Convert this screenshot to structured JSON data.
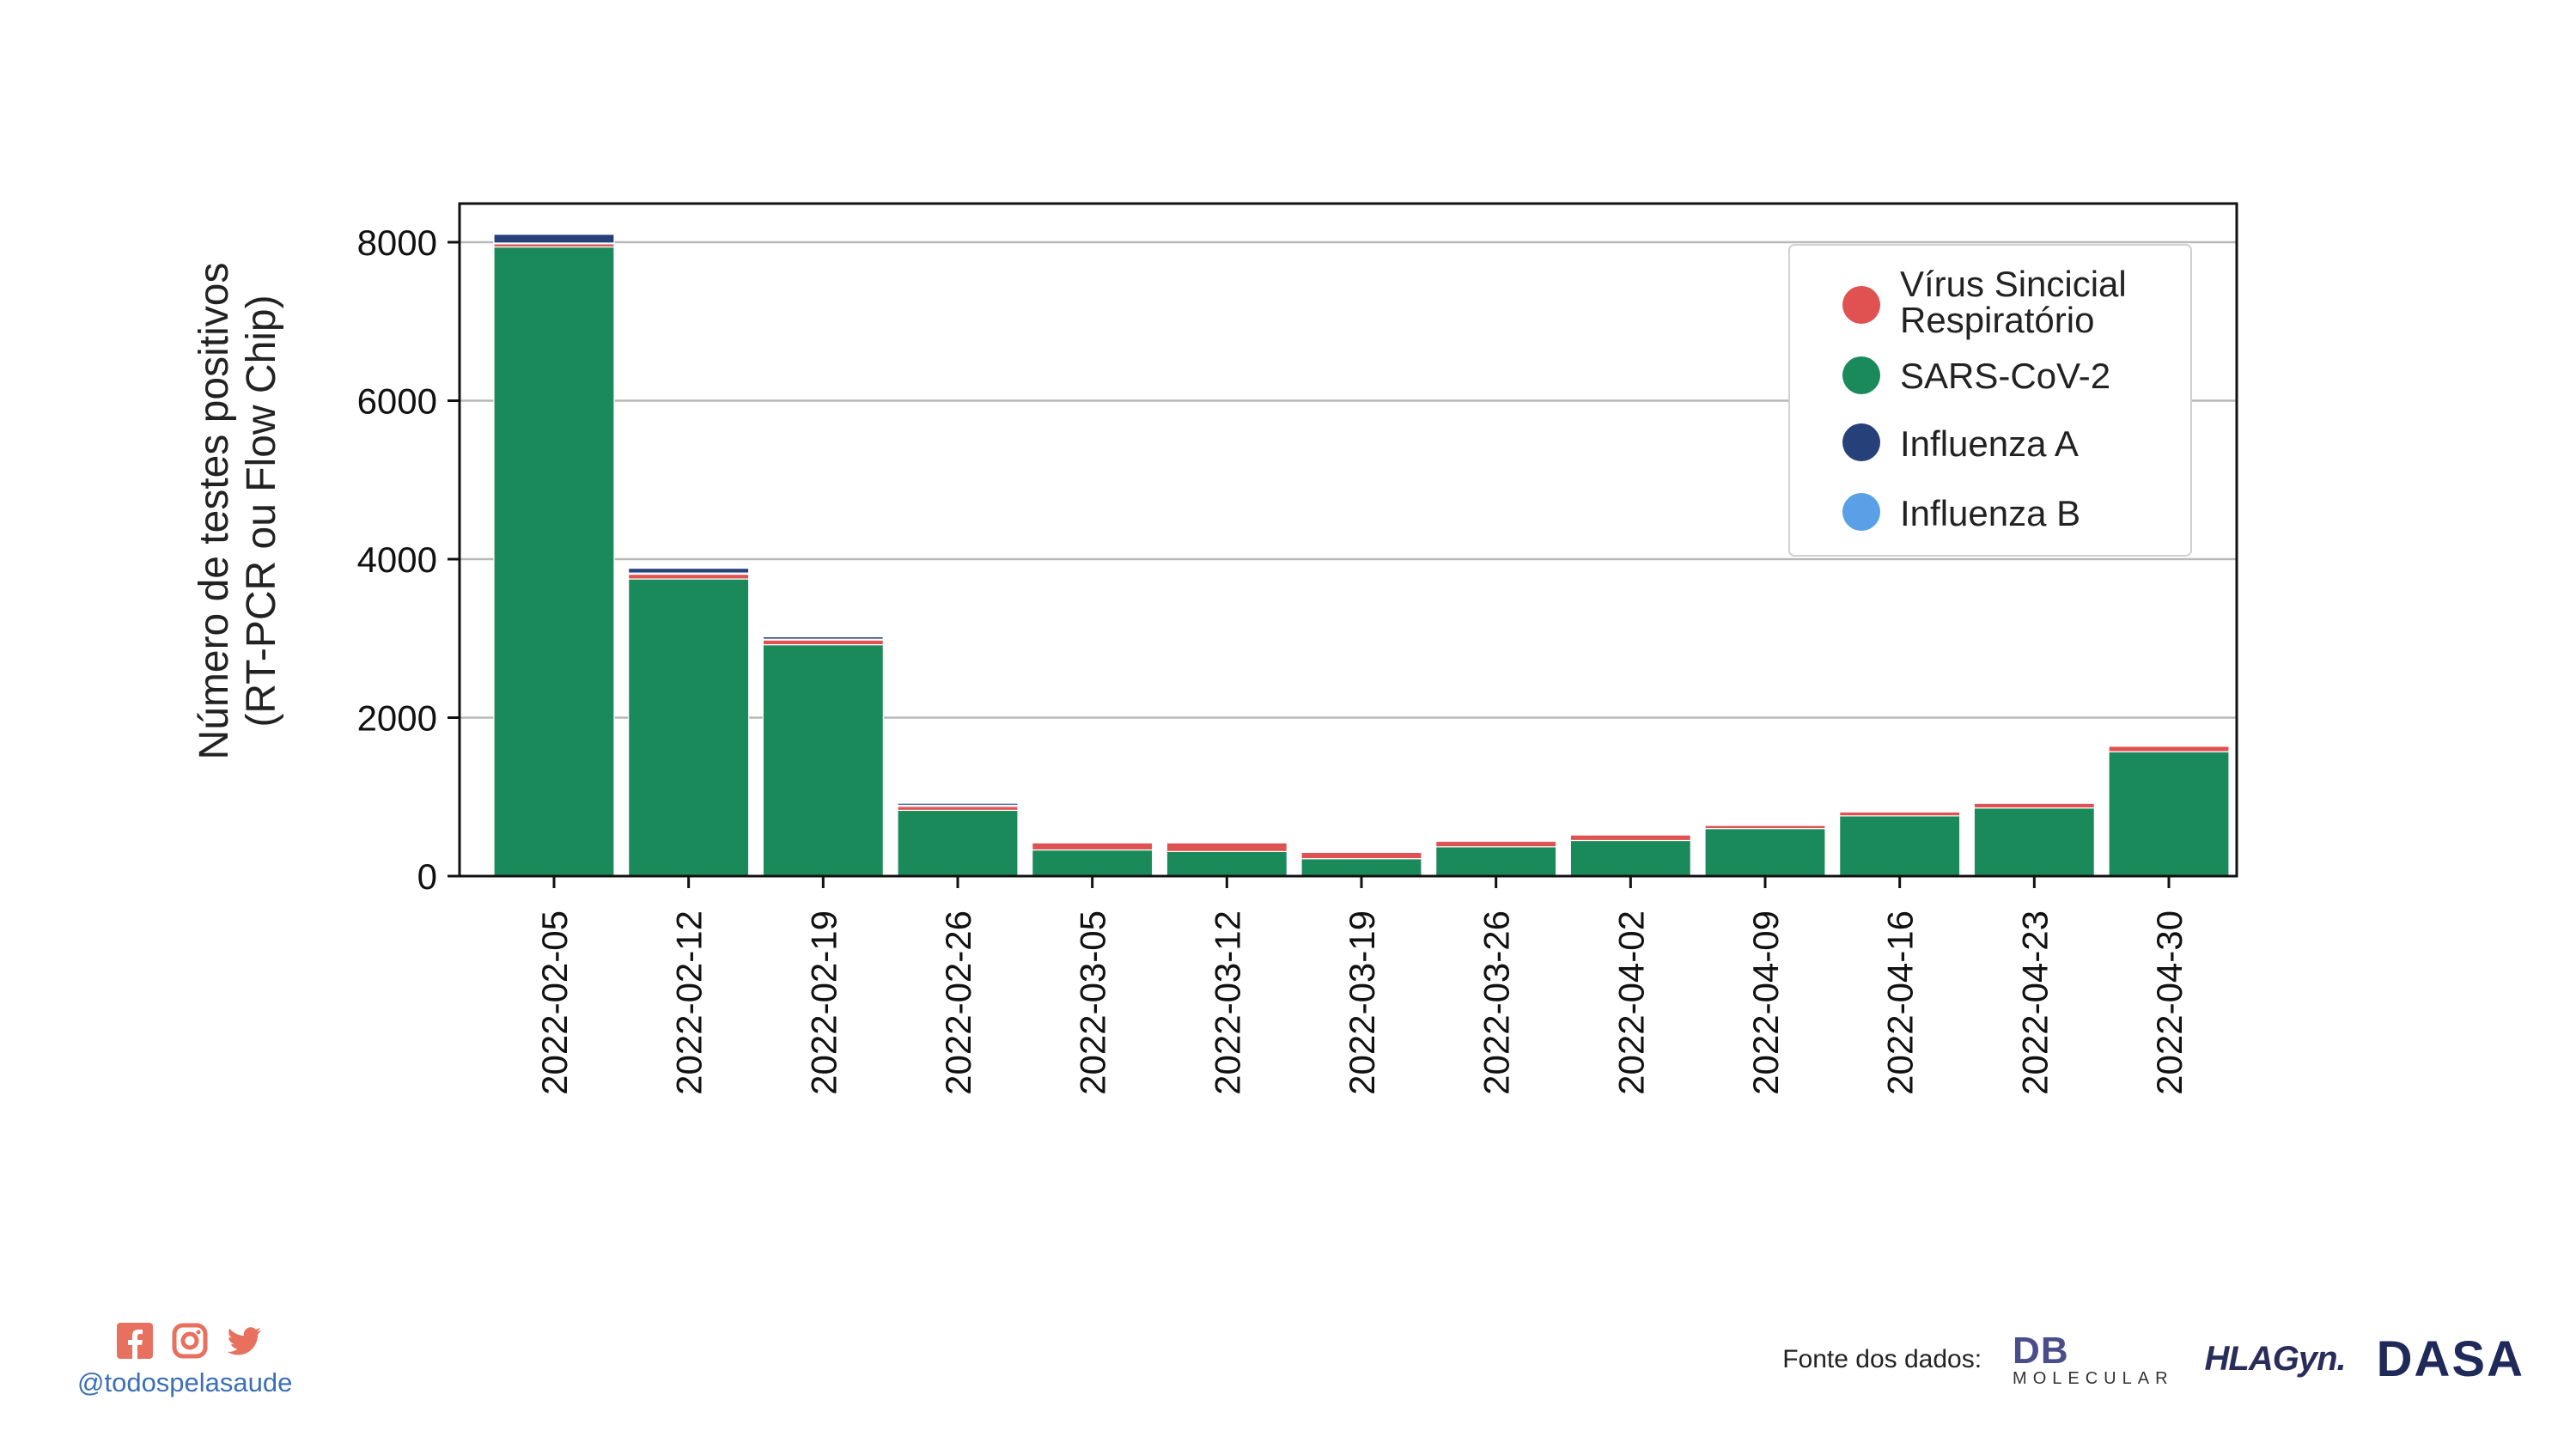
{
  "chart_data": {
    "type": "bar",
    "stacked": true,
    "ylabel": "Número de testes positivos\n(RT-PCR ou Flow Chip)",
    "ylim": [
      0,
      8500
    ],
    "yticks": [
      0,
      2000,
      4000,
      6000,
      8000
    ],
    "grid": "horizontal",
    "legend_position": "top-right",
    "categories": [
      "2022-02-05",
      "2022-02-12",
      "2022-02-19",
      "2022-02-26",
      "2022-03-05",
      "2022-03-12",
      "2022-03-19",
      "2022-03-26",
      "2022-04-02",
      "2022-04-09",
      "2022-04-16",
      "2022-04-23",
      "2022-04-30"
    ],
    "series": [
      {
        "name": "SARS-CoV-2",
        "color": "#1b8a5a",
        "values": [
          7940,
          3750,
          2920,
          830,
          330,
          310,
          220,
          370,
          450,
          600,
          760,
          860,
          1570
        ]
      },
      {
        "name": "Vírus Sincicial Respiratório",
        "color": "#e05252",
        "values": [
          40,
          60,
          60,
          50,
          90,
          110,
          80,
          70,
          70,
          40,
          50,
          60,
          70
        ]
      },
      {
        "name": "Influenza B",
        "color": "#5aa0e6",
        "values": [
          10,
          15,
          10,
          15,
          5,
          5,
          5,
          5,
          5,
          5,
          5,
          5,
          5
        ]
      },
      {
        "name": "Influenza A",
        "color": "#26407a",
        "values": [
          110,
          60,
          30,
          25,
          10,
          10,
          5,
          5,
          5,
          5,
          5,
          5,
          5
        ]
      }
    ],
    "legend_order": [
      "Vírus Sincicial Respiratório",
      "SARS-CoV-2",
      "Influenza A",
      "Influenza B"
    ]
  },
  "legend_labels": {
    "rsv_line1": "Vírus Sincicial",
    "rsv_line2": "Respiratório",
    "sars": "SARS-CoV-2",
    "flu_a": "Influenza A",
    "flu_b": "Influenza B"
  },
  "ylabel_lines": [
    "Número de testes positivos",
    "(RT-PCR ou Flow Chip)"
  ],
  "footer": {
    "handle": "@todospelasaude",
    "source_label": "Fonte dos dados:",
    "logo_db": "DB",
    "logo_db_sub": "MOLECULAR",
    "logo_hla": "HLAGyn.",
    "logo_dasa": "DASA",
    "social_icons": [
      "facebook-icon",
      "instagram-icon",
      "twitter-icon"
    ],
    "icon_color": "#e8705f"
  }
}
